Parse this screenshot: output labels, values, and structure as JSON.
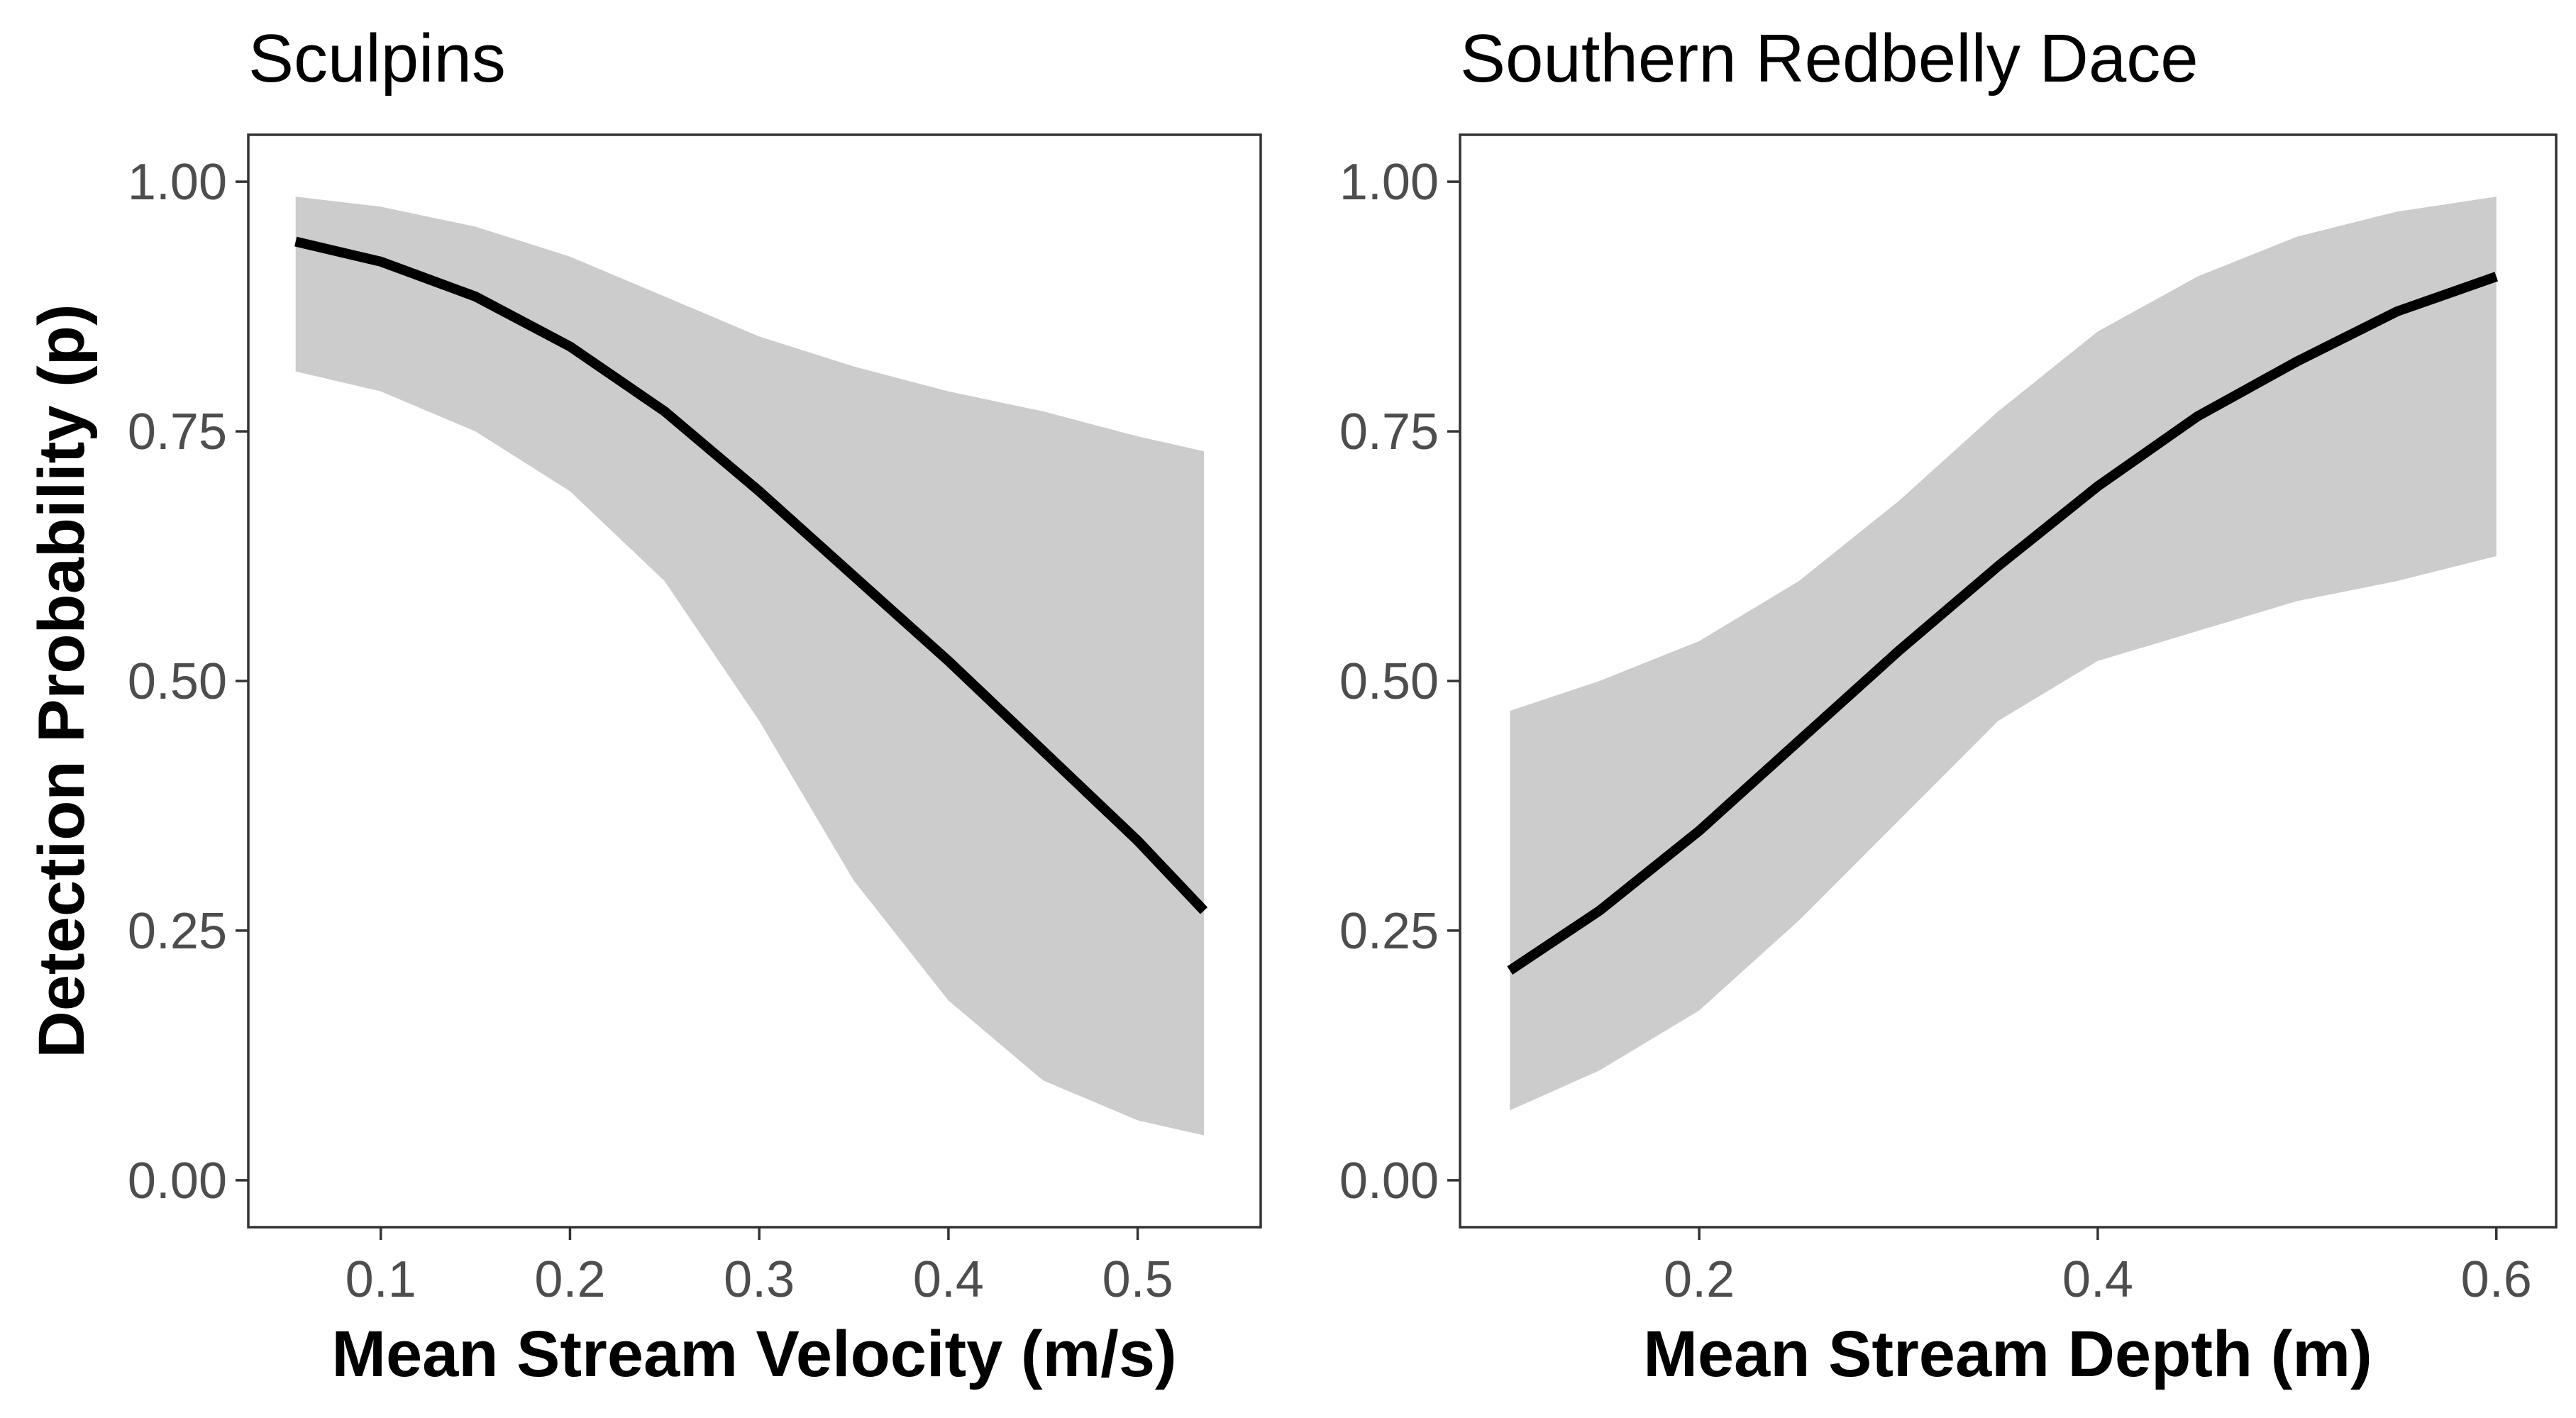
{
  "colors": {
    "line": "#000000",
    "ribbon": "#cccccc",
    "frame": "#333333",
    "tick_text": "#4d4d4d"
  },
  "shared_ylabel": "Detection Probability (p)",
  "chart_data": [
    {
      "type": "line",
      "title": "Sculpins",
      "xlabel": "Mean Stream Velocity (m/s)",
      "ylabel": "Detection Probability (p)",
      "xlim": [
        0.03,
        0.565
      ],
      "ylim": [
        -0.047,
        1.047
      ],
      "x_ticks": [
        0.1,
        0.2,
        0.3,
        0.4,
        0.5
      ],
      "x_tick_labels": [
        "0.1",
        "0.2",
        "0.3",
        "0.4",
        "0.5"
      ],
      "y_ticks": [
        0,
        0.25,
        0.5,
        0.75,
        1.0
      ],
      "y_tick_labels": [
        "0.00",
        "0.25",
        "0.50",
        "0.75",
        "1.00"
      ],
      "grid": false,
      "series": [
        {
          "x": [
            0.055,
            0.1,
            0.15,
            0.2,
            0.25,
            0.3,
            0.35,
            0.4,
            0.45,
            0.5,
            0.535
          ],
          "y": [
            0.94,
            0.92,
            0.885,
            0.835,
            0.77,
            0.69,
            0.605,
            0.52,
            0.43,
            0.34,
            0.27
          ],
          "lower": [
            0.81,
            0.79,
            0.75,
            0.69,
            0.6,
            0.46,
            0.3,
            0.18,
            0.1,
            0.06,
            0.045
          ],
          "upper": [
            0.985,
            0.975,
            0.955,
            0.925,
            0.885,
            0.845,
            0.815,
            0.79,
            0.77,
            0.745,
            0.73
          ]
        }
      ]
    },
    {
      "type": "line",
      "title": "Southern Redbelly Dace",
      "xlabel": "Mean Stream Depth (m)",
      "ylabel": "",
      "xlim": [
        0.08,
        0.63
      ],
      "ylim": [
        -0.047,
        1.047
      ],
      "x_ticks": [
        0.2,
        0.4,
        0.6
      ],
      "x_tick_labels": [
        "0.2",
        "0.4",
        "0.6"
      ],
      "y_ticks": [
        0,
        0.25,
        0.5,
        0.75,
        1.0
      ],
      "y_tick_labels": [
        "0.00",
        "0.25",
        "0.50",
        "0.75",
        "1.00"
      ],
      "grid": false,
      "series": [
        {
          "x": [
            0.105,
            0.15,
            0.2,
            0.25,
            0.3,
            0.35,
            0.4,
            0.45,
            0.5,
            0.55,
            0.6
          ],
          "y": [
            0.21,
            0.27,
            0.35,
            0.44,
            0.53,
            0.615,
            0.695,
            0.765,
            0.82,
            0.87,
            0.905
          ],
          "lower": [
            0.07,
            0.11,
            0.17,
            0.26,
            0.36,
            0.46,
            0.52,
            0.55,
            0.58,
            0.6,
            0.625
          ],
          "upper": [
            0.47,
            0.5,
            0.54,
            0.6,
            0.68,
            0.77,
            0.85,
            0.905,
            0.945,
            0.97,
            0.985
          ]
        }
      ]
    }
  ]
}
